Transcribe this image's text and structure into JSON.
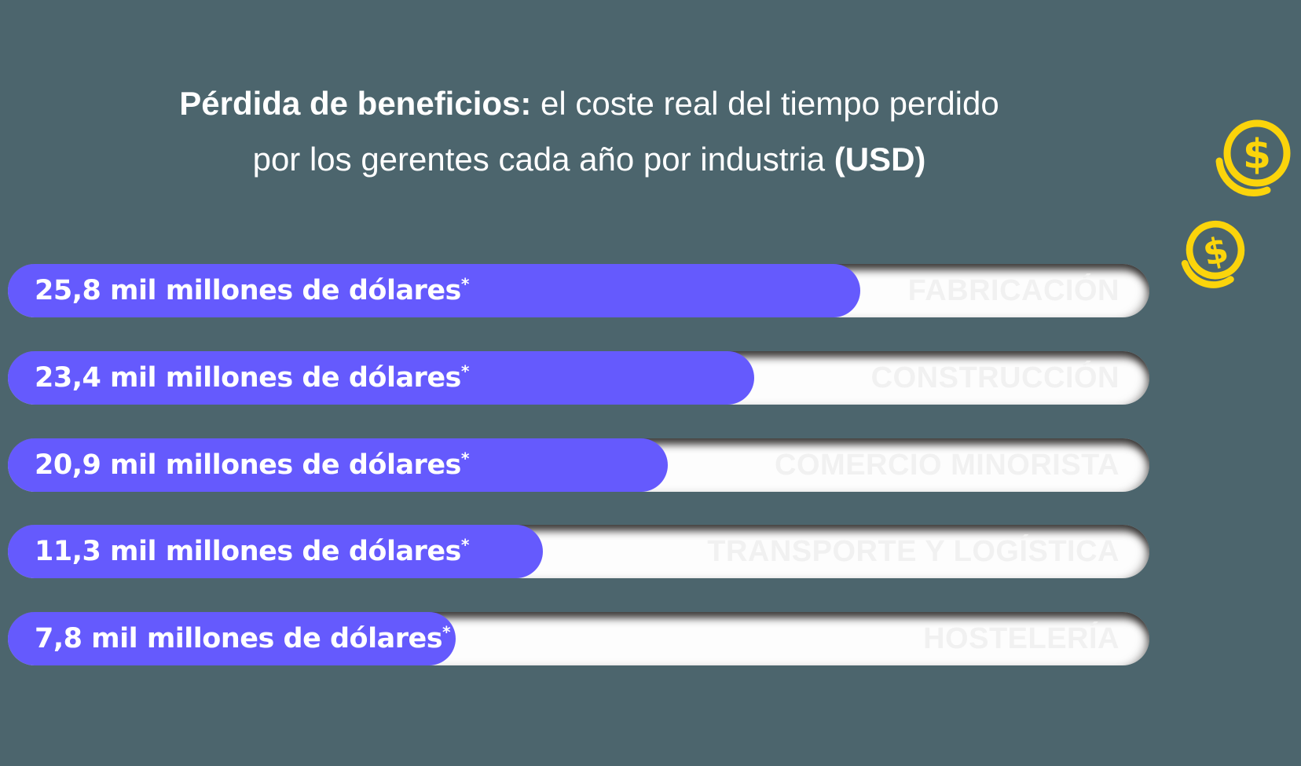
{
  "page": {
    "background_color": "#4C656D",
    "accent_color": "#655AFD",
    "track_color": "#FDFDFD",
    "coin_color": "#FBD40B",
    "text_color": "#FFFFFF"
  },
  "title": {
    "line1_bold": "Pérdida de beneficios:",
    "line1_rest": " el coste real del tiempo perdido",
    "line2_rest": "por los gerentes cada año por industria ",
    "line2_bold": "(USD)"
  },
  "icons": {
    "dollar_symbol": "$",
    "large_coin_name": "dollar-coin-icon-large",
    "small_coin_name": "dollar-coin-icon-small"
  },
  "bars": [
    {
      "value_label": "25,8 mil millones de dólares",
      "marker": "*",
      "industry": "FABRICACIÓN",
      "width": "74.7%"
    },
    {
      "value_label": "23,4 mil millones de dólares",
      "marker": "*",
      "industry": "CONSTRUCCIÓN",
      "width": "65.4%"
    },
    {
      "value_label": "20,9 mil millones de dólares",
      "marker": "*",
      "industry": "COMERCIO MINORISTA",
      "width": "57.8%"
    },
    {
      "value_label": "11,3 mil millones de dólares",
      "marker": "*",
      "industry": "TRANSPORTE Y LOGÍSTICA",
      "width": "46.9%"
    },
    {
      "value_label": "7,8 mil millones de dólares",
      "marker": "*",
      "industry": "HOSTELERÍA",
      "width": "39.2%"
    }
  ],
  "chart_data": {
    "type": "bar",
    "orientation": "horizontal",
    "title": "Pérdida de beneficios: el coste real del tiempo perdido por los gerentes cada año por industria (USD)",
    "categories": [
      "FABRICACIÓN",
      "CONSTRUCCIÓN",
      "COMERCIO MINORISTA",
      "TRANSPORTE Y LOGÍSTICA",
      "HOSTELERÍA"
    ],
    "values": [
      25.8,
      23.4,
      20.9,
      11.3,
      7.8
    ],
    "unit": "mil millones de dólares (USD)",
    "value_labels": [
      "25,8 mil millones de dólares*",
      "23,4 mil millones de dólares*",
      "20,9 mil millones de dólares*",
      "11,3 mil millones de dólares*",
      "7,8 mil millones de dólares*"
    ],
    "bar_fractions": [
      0.747,
      0.654,
      0.578,
      0.469,
      0.392
    ],
    "footnote_marker": "*",
    "xlabel": "",
    "ylabel": "",
    "grid": false,
    "legend": false,
    "bar_color": "#655AFD",
    "track_color": "#FDFDFD",
    "background_color": "#4C656D"
  }
}
